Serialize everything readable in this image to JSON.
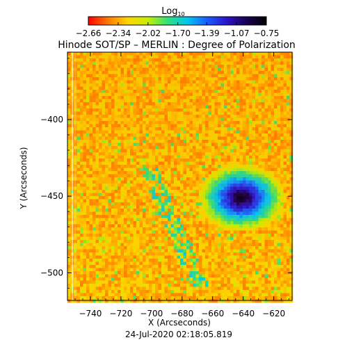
{
  "chart_data": {
    "type": "heatmap",
    "title": "Hinode SOT/SP – MERLIN : Degree of Polarization",
    "colorbar": {
      "label_base": "Log",
      "label_sub": "10",
      "ticks": [
        "−2.66",
        "−2.34",
        "−2.02",
        "−1.70",
        "−1.39",
        "−1.07",
        "−0.75"
      ],
      "range": [
        -2.66,
        -0.75
      ],
      "colormap": [
        "#ff0000",
        "#ff7a00",
        "#ffd400",
        "#c8f000",
        "#33e07a",
        "#00c8f0",
        "#1a5cff",
        "#2a14c8",
        "#1a0050",
        "#000000"
      ]
    },
    "xlabel": "X (Arcseconds)",
    "ylabel": "Y (Arcseconds)",
    "xlim": [
      -755,
      -608
    ],
    "ylim": [
      -518,
      -356
    ],
    "xticks": [
      {
        "value": -740,
        "label": "−740"
      },
      {
        "value": -720,
        "label": "−720"
      },
      {
        "value": -700,
        "label": "−700"
      },
      {
        "value": -680,
        "label": "−680"
      },
      {
        "value": -660,
        "label": "−660"
      },
      {
        "value": -640,
        "label": "−640"
      },
      {
        "value": -620,
        "label": "−620"
      }
    ],
    "yticks": [
      {
        "value": -400,
        "label": "−400"
      },
      {
        "value": -450,
        "label": "−450"
      },
      {
        "value": -500,
        "label": "−500"
      }
    ],
    "features": {
      "background_log_polarization": -2.4,
      "sunspot": {
        "x": -641,
        "y": -451,
        "rx": 13,
        "ry": 10,
        "peak_log_polarization": -0.75
      },
      "plage_streak": {
        "x": [
          -702,
          -668
        ],
        "y": [
          -430,
          -510
        ]
      }
    },
    "footer_timestamp": "24-Jul-2020 02:18:05.819"
  }
}
